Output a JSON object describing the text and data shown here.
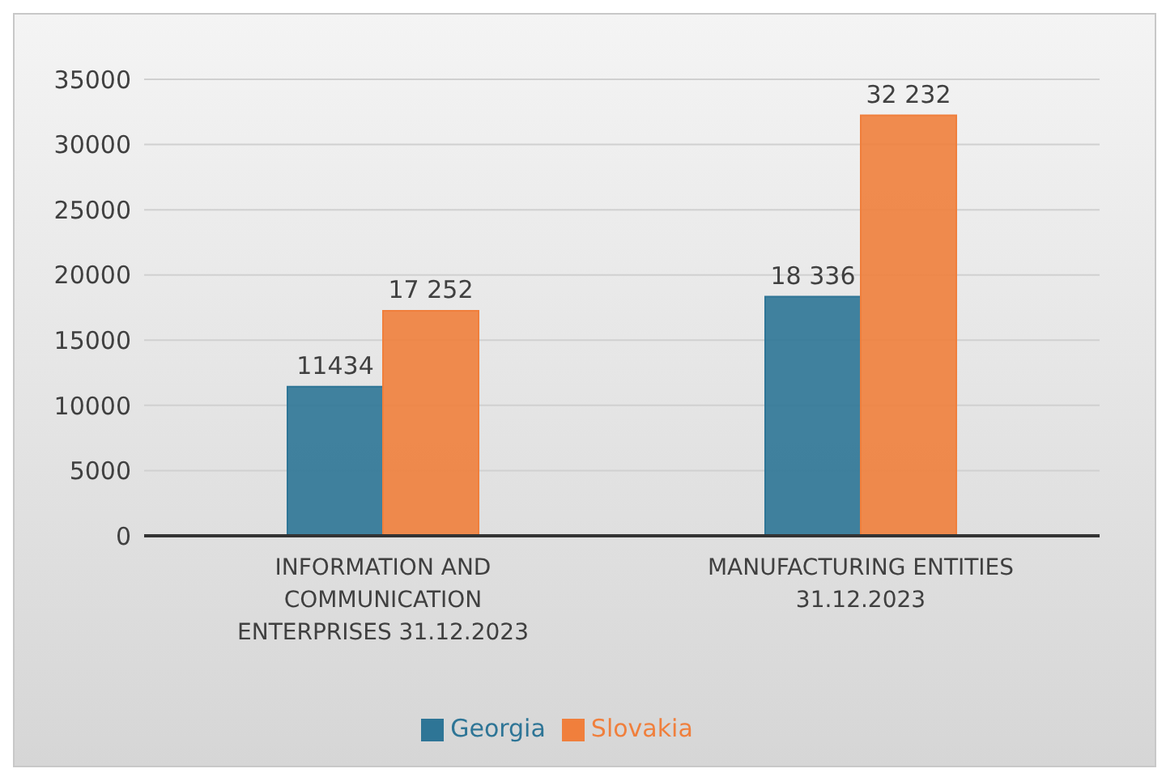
{
  "chart_data": {
    "type": "bar",
    "categories": [
      "INFORMATION AND COMMUNICATION ENTERPRISES 31.12.2023",
      "MANUFACTURING ENTITIES 31.12.2023"
    ],
    "series": [
      {
        "name": "Georgia",
        "color": "#2e7596",
        "values": [
          11434,
          18336
        ],
        "value_labels": [
          "11434",
          "18 336"
        ]
      },
      {
        "name": "Slovakia",
        "color": "#f07f3c",
        "values": [
          17252,
          32232
        ],
        "value_labels": [
          "17 252",
          "32 232"
        ]
      }
    ],
    "ylim": [
      0,
      35000
    ],
    "yticks": [
      0,
      5000,
      10000,
      15000,
      20000,
      25000,
      30000,
      35000
    ],
    "grid": "y",
    "legend": "bottom"
  }
}
